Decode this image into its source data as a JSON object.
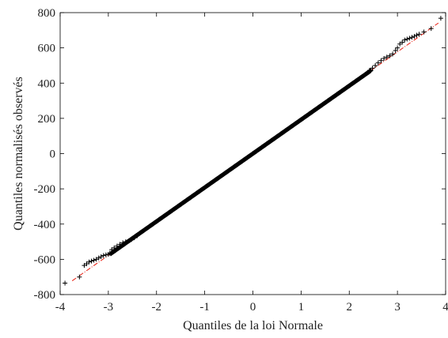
{
  "chart_data": {
    "type": "scatter",
    "xlabel": "Quantiles de la loi Normale",
    "ylabel": "Quantiles normalisés observés",
    "xlim": [
      -4,
      4
    ],
    "ylim": [
      -800,
      800
    ],
    "x_ticks": [
      "-4",
      "-3",
      "-2",
      "-1",
      "0",
      "1",
      "2",
      "3",
      "4"
    ],
    "y_ticks": [
      "-800",
      "-600",
      "-400",
      "-200",
      "0",
      "200",
      "400",
      "600",
      "800"
    ],
    "grid": false,
    "marker": "+",
    "series": [
      {
        "points_dense": {
          "x_from": -2.95,
          "x_to": 2.45,
          "slope": 192.5,
          "intercept": 0
        },
        "points_tail": [
          [
            -3.9,
            -735
          ],
          [
            -3.6,
            -700
          ],
          [
            -3.5,
            -635
          ],
          [
            -3.45,
            -625
          ],
          [
            -3.4,
            -615
          ],
          [
            -3.35,
            -610
          ],
          [
            -3.3,
            -605
          ],
          [
            -3.25,
            -600
          ],
          [
            -3.2,
            -592
          ],
          [
            -3.15,
            -585
          ],
          [
            -3.1,
            -578
          ],
          [
            -3.05,
            -575
          ],
          [
            -3.0,
            -572
          ],
          [
            -2.97,
            -565
          ],
          [
            -2.93,
            -545
          ],
          [
            -2.88,
            -535
          ],
          [
            -2.82,
            -525
          ],
          [
            -2.76,
            -515
          ],
          [
            -2.7,
            -506
          ],
          [
            -2.64,
            -500
          ],
          [
            -2.58,
            -495
          ],
          [
            -2.52,
            -488
          ],
          [
            -2.46,
            -478
          ],
          [
            -2.4,
            -466
          ],
          [
            2.42,
            472
          ],
          [
            2.48,
            485
          ],
          [
            2.54,
            500
          ],
          [
            2.6,
            515
          ],
          [
            2.66,
            528
          ],
          [
            2.72,
            540
          ],
          [
            2.78,
            548
          ],
          [
            2.84,
            555
          ],
          [
            2.9,
            565
          ],
          [
            2.96,
            585
          ],
          [
            3.0,
            600
          ],
          [
            3.05,
            622
          ],
          [
            3.1,
            632
          ],
          [
            3.15,
            645
          ],
          [
            3.2,
            650
          ],
          [
            3.25,
            655
          ],
          [
            3.3,
            660
          ],
          [
            3.35,
            665
          ],
          [
            3.4,
            672
          ],
          [
            3.45,
            678
          ],
          [
            3.55,
            690
          ],
          [
            3.7,
            710
          ],
          [
            3.9,
            768
          ]
        ],
        "color": "#000000"
      }
    ],
    "reference_line": {
      "slope": 192.5,
      "intercept": 0,
      "style": "dash-dot",
      "color": "#e8190c"
    }
  }
}
